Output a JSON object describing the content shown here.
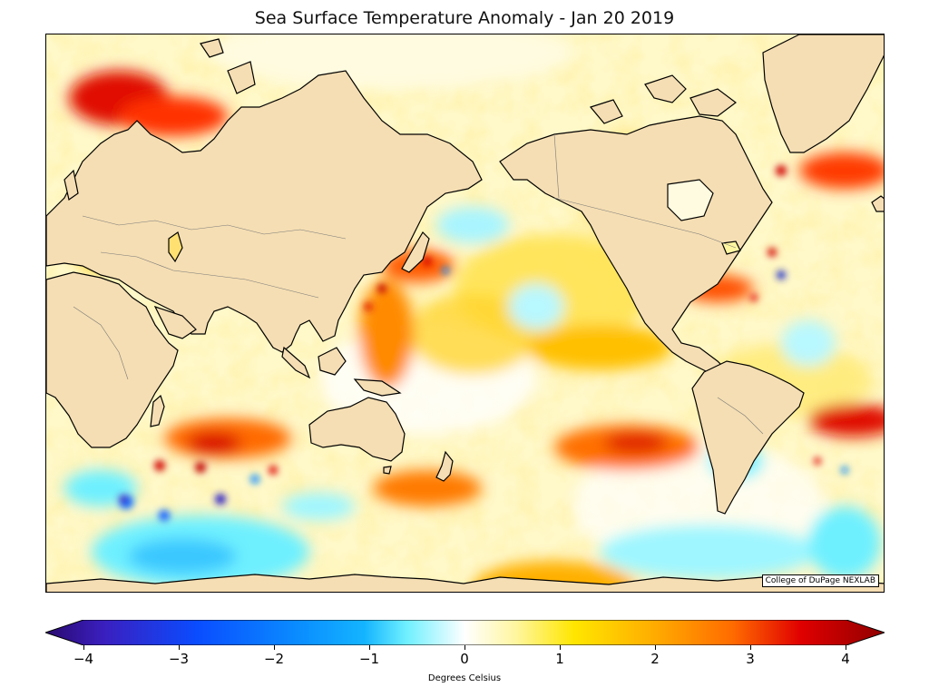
{
  "title": "Sea Surface Temperature Anomaly - Jan 20 2019",
  "credit": "College of DuPage NEXLAB",
  "colorbar": {
    "label": "Degrees Celsius",
    "ticks": [
      "−4",
      "−3",
      "−2",
      "−1",
      "0",
      "1",
      "2",
      "3",
      "4"
    ],
    "range": [
      -4,
      4
    ],
    "extend": "both",
    "colors": [
      "#2a0a6e",
      "#3a1fbf",
      "#0a4cff",
      "#0a8cff",
      "#14b4ff",
      "#6ef0ff",
      "#ffffff",
      "#fff6a0",
      "#ffe600",
      "#ffb000",
      "#ff6a00",
      "#e00000",
      "#900000"
    ]
  },
  "map": {
    "projection": "Miller cylindrical, Pacific-centered",
    "land_color": "#f5deb3",
    "coast_color": "#000000"
  }
}
